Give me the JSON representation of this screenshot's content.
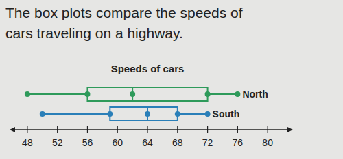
{
  "chart_data": {
    "type": "box",
    "annotations": [
      "The box plots compare the speeds of",
      "cars traveling on a highway."
    ],
    "title": "Speeds of cars",
    "xlim": [
      46,
      83
    ],
    "xticks": [
      48,
      52,
      56,
      60,
      64,
      68,
      72,
      76,
      80
    ],
    "series": [
      {
        "name": "North",
        "color": "#2e9a5a",
        "min": 48,
        "q1": 56,
        "median": 62,
        "q3": 72,
        "max": 76
      },
      {
        "name": "South",
        "color": "#2a7fb8",
        "min": 50,
        "q1": 59,
        "median": 64,
        "q3": 68,
        "max": 72
      }
    ]
  }
}
